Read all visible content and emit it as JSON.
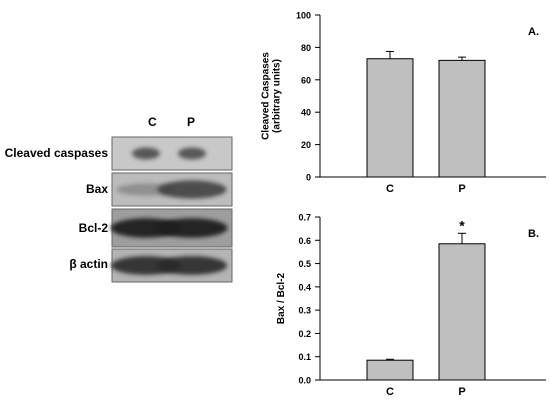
{
  "blot": {
    "lanes": [
      "C",
      "P"
    ],
    "rows": [
      {
        "label": "Cleaved caspases",
        "bg": "#c8c8c8",
        "band": [
          0.75,
          0.75
        ],
        "bandColor": "#333333"
      },
      {
        "label": "Bax",
        "bg": "#bcbcbc",
        "band": [
          0.35,
          0.85
        ],
        "bandColor": "#3a3a3a"
      },
      {
        "label": "Bcl-2",
        "bg": "#9e9e9e",
        "band": [
          0.95,
          0.95
        ],
        "bandColor": "#202020"
      },
      {
        "label": "β actin",
        "bg": "#b4b4b4",
        "band": [
          0.9,
          0.9
        ],
        "bandColor": "#2a2a2a"
      }
    ]
  },
  "chart_data": [
    {
      "type": "bar",
      "panel": "A.",
      "categories": [
        "C",
        "P"
      ],
      "values": [
        73,
        72
      ],
      "errors": [
        4.5,
        2
      ],
      "ylabel_lines": [
        "Cleaved Caspases",
        "(arbitrary units)"
      ],
      "ylim": [
        0,
        100
      ],
      "yticks": [
        0,
        20,
        40,
        60,
        80,
        100
      ],
      "annotations": [
        "",
        ""
      ]
    },
    {
      "type": "bar",
      "panel": "B.",
      "categories": [
        "C",
        "P"
      ],
      "values": [
        0.085,
        0.585
      ],
      "errors": [
        0.004,
        0.045
      ],
      "ylabel_lines": [
        "Bax / Bcl-2"
      ],
      "ylim": [
        0,
        0.7
      ],
      "yticks": [
        0.0,
        0.1,
        0.2,
        0.3,
        0.4,
        0.5,
        0.6,
        0.7
      ],
      "annotations": [
        "",
        "*"
      ]
    }
  ]
}
